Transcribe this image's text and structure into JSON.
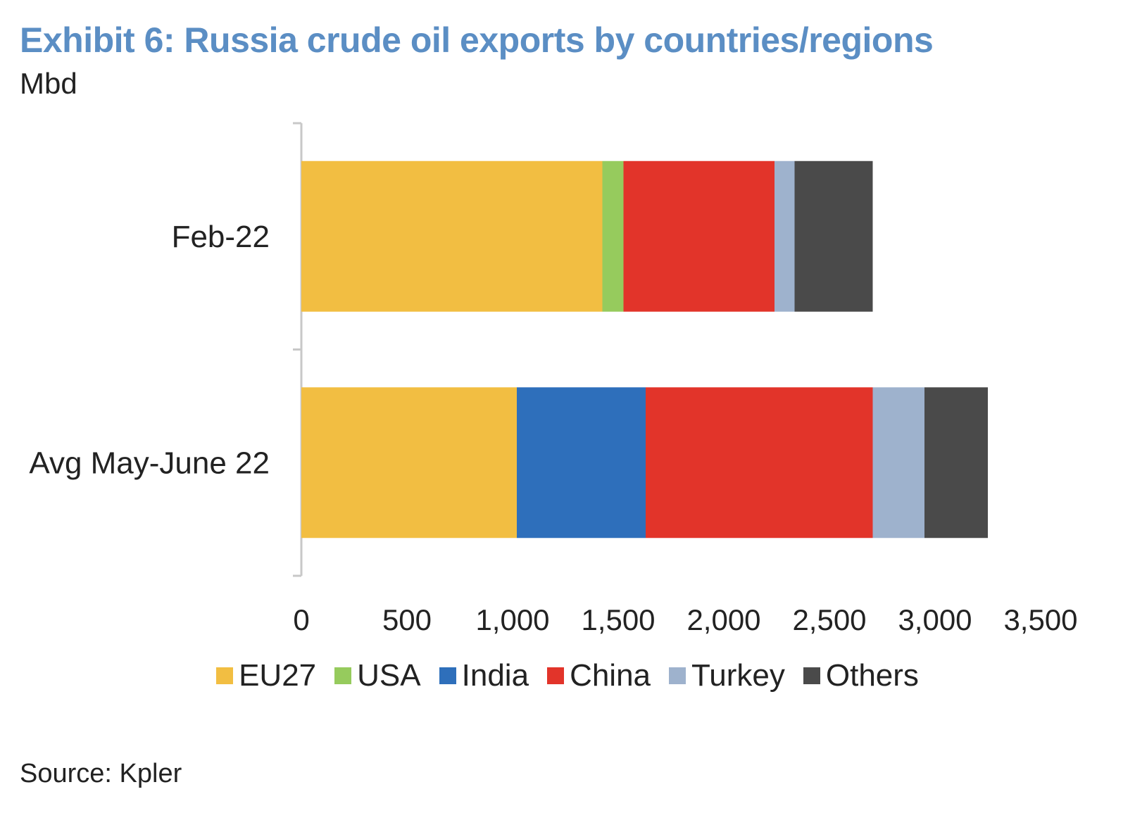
{
  "title": "Exhibit 6: Russia crude oil exports by countries/regions",
  "subtitle": "Mbd",
  "source": "Source: Kpler",
  "chart_data": {
    "type": "bar",
    "orientation": "horizontal",
    "stacked": true,
    "categories": [
      "Feb-22",
      "Avg May-June 22"
    ],
    "series": [
      {
        "name": "EU27",
        "color": "#f2be42",
        "values": [
          1425,
          1020
        ]
      },
      {
        "name": "USA",
        "color": "#96cb5d",
        "values": [
          100,
          0
        ]
      },
      {
        "name": "India",
        "color": "#2e6fbb",
        "values": [
          0,
          610
        ]
      },
      {
        "name": "China",
        "color": "#e2342a",
        "values": [
          715,
          1075
        ]
      },
      {
        "name": "Turkey",
        "color": "#9eb2cd",
        "values": [
          95,
          245
        ]
      },
      {
        "name": "Others",
        "color": "#4a4a4a",
        "values": [
          370,
          300
        ]
      }
    ],
    "xlim": [
      0,
      3500
    ],
    "xticks": [
      0,
      500,
      1000,
      1500,
      2000,
      2500,
      3000,
      3500
    ],
    "xtick_labels": [
      "0",
      "500",
      "1,000",
      "1,500",
      "2,000",
      "2,500",
      "3,000",
      "3,500"
    ],
    "grid": false,
    "legend_position": "bottom"
  }
}
